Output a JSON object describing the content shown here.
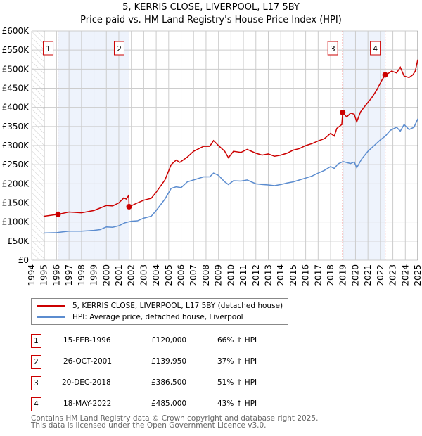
{
  "title": "5, KERRIS CLOSE, LIVERPOOL, L17 5BY",
  "subtitle": "Price paid vs. HM Land Registry's House Price Index (HPI)",
  "colors": {
    "property": "#cc0000",
    "hpi": "#5b8ccf",
    "shade": "#eef3fc",
    "grid": "#cccccc"
  },
  "chart_data": {
    "type": "line",
    "xlim": [
      1994,
      2025
    ],
    "ylim": [
      0,
      600000
    ],
    "x_ticks": [
      "1994",
      "1995",
      "1996",
      "1997",
      "1998",
      "1999",
      "2000",
      "2001",
      "2002",
      "2003",
      "2004",
      "2005",
      "2006",
      "2007",
      "2008",
      "2009",
      "2010",
      "2011",
      "2012",
      "2013",
      "2014",
      "2015",
      "2016",
      "2017",
      "2018",
      "2019",
      "2020",
      "2021",
      "2022",
      "2023",
      "2024",
      "2025"
    ],
    "y_ticks": [
      {
        "v": 0,
        "label": "£0"
      },
      {
        "v": 50000,
        "label": "£50K"
      },
      {
        "v": 100000,
        "label": "£100K"
      },
      {
        "v": 150000,
        "label": "£150K"
      },
      {
        "v": 200000,
        "label": "£200K"
      },
      {
        "v": 250000,
        "label": "£250K"
      },
      {
        "v": 300000,
        "label": "£300K"
      },
      {
        "v": 350000,
        "label": "£350K"
      },
      {
        "v": 400000,
        "label": "£400K"
      },
      {
        "v": 450000,
        "label": "£450K"
      },
      {
        "v": 500000,
        "label": "£500K"
      },
      {
        "v": 550000,
        "label": "£550K"
      },
      {
        "v": 600000,
        "label": "£600K"
      }
    ],
    "series": [
      {
        "name": "5, KERRIS CLOSE, LIVERPOOL, L17 5BY (detached house)",
        "color": "#cc0000",
        "points": [
          [
            1995,
            115000
          ],
          [
            1996.12,
            120000
          ],
          [
            1997,
            126000
          ],
          [
            1998,
            124000
          ],
          [
            1999,
            130000
          ],
          [
            2000,
            143000
          ],
          [
            2000.5,
            142000
          ],
          [
            2001,
            150000
          ],
          [
            2001.4,
            163000
          ],
          [
            2001.6,
            160000
          ],
          [
            2001.8,
            170000
          ],
          [
            2001.82,
            139950
          ],
          [
            2002.5,
            150000
          ],
          [
            2003,
            157000
          ],
          [
            2003.6,
            162000
          ],
          [
            2004,
            178000
          ],
          [
            2004.7,
            210000
          ],
          [
            2005.2,
            250000
          ],
          [
            2005.6,
            262000
          ],
          [
            2005.9,
            256000
          ],
          [
            2006.5,
            270000
          ],
          [
            2007,
            285000
          ],
          [
            2007.8,
            298000
          ],
          [
            2008.3,
            298000
          ],
          [
            2008.6,
            313000
          ],
          [
            2009,
            300000
          ],
          [
            2009.5,
            285000
          ],
          [
            2009.8,
            268000
          ],
          [
            2010.2,
            285000
          ],
          [
            2010.8,
            282000
          ],
          [
            2011.3,
            290000
          ],
          [
            2012,
            280000
          ],
          [
            2012.5,
            275000
          ],
          [
            2013,
            278000
          ],
          [
            2013.5,
            272000
          ],
          [
            2014,
            275000
          ],
          [
            2014.5,
            280000
          ],
          [
            2015,
            288000
          ],
          [
            2015.5,
            292000
          ],
          [
            2016,
            300000
          ],
          [
            2016.5,
            305000
          ],
          [
            2017,
            312000
          ],
          [
            2017.5,
            318000
          ],
          [
            2018,
            332000
          ],
          [
            2018.3,
            325000
          ],
          [
            2018.5,
            345000
          ],
          [
            2018.9,
            355000
          ],
          [
            2018.97,
            386500
          ],
          [
            2019.3,
            375000
          ],
          [
            2019.6,
            385000
          ],
          [
            2019.9,
            382000
          ],
          [
            2020.1,
            362000
          ],
          [
            2020.4,
            388000
          ],
          [
            2020.8,
            405000
          ],
          [
            2021.3,
            425000
          ],
          [
            2021.7,
            445000
          ],
          [
            2022.1,
            470000
          ],
          [
            2022.38,
            485000
          ],
          [
            2022.6,
            488000
          ],
          [
            2022.9,
            495000
          ],
          [
            2023.3,
            490000
          ],
          [
            2023.6,
            505000
          ],
          [
            2023.9,
            482000
          ],
          [
            2024.3,
            478000
          ],
          [
            2024.6,
            485000
          ],
          [
            2024.8,
            495000
          ],
          [
            2025,
            525000
          ]
        ]
      },
      {
        "name": "HPI: Average price, detached house, Liverpool",
        "color": "#5b8ccf",
        "points": [
          [
            1995,
            71000
          ],
          [
            1996,
            72000
          ],
          [
            1996.5,
            74000
          ],
          [
            1997,
            76000
          ],
          [
            1998,
            76000
          ],
          [
            1999,
            78000
          ],
          [
            1999.5,
            80000
          ],
          [
            2000,
            87000
          ],
          [
            2000.5,
            86000
          ],
          [
            2001,
            90000
          ],
          [
            2001.5,
            98000
          ],
          [
            2002,
            102000
          ],
          [
            2002.5,
            103000
          ],
          [
            2003,
            110000
          ],
          [
            2003.6,
            115000
          ],
          [
            2004,
            130000
          ],
          [
            2004.7,
            160000
          ],
          [
            2005.2,
            188000
          ],
          [
            2005.6,
            192000
          ],
          [
            2006,
            190000
          ],
          [
            2006.5,
            205000
          ],
          [
            2007,
            210000
          ],
          [
            2007.8,
            218000
          ],
          [
            2008.3,
            218000
          ],
          [
            2008.6,
            228000
          ],
          [
            2009,
            222000
          ],
          [
            2009.5,
            205000
          ],
          [
            2009.8,
            198000
          ],
          [
            2010.2,
            208000
          ],
          [
            2010.8,
            207000
          ],
          [
            2011.3,
            210000
          ],
          [
            2012,
            200000
          ],
          [
            2012.5,
            198000
          ],
          [
            2013,
            197000
          ],
          [
            2013.5,
            195000
          ],
          [
            2014,
            198000
          ],
          [
            2014.5,
            202000
          ],
          [
            2015,
            205000
          ],
          [
            2015.5,
            210000
          ],
          [
            2016,
            215000
          ],
          [
            2016.5,
            220000
          ],
          [
            2017,
            228000
          ],
          [
            2017.5,
            235000
          ],
          [
            2018,
            245000
          ],
          [
            2018.3,
            240000
          ],
          [
            2018.6,
            252000
          ],
          [
            2019,
            258000
          ],
          [
            2019.6,
            253000
          ],
          [
            2019.9,
            257000
          ],
          [
            2020.1,
            242000
          ],
          [
            2020.5,
            265000
          ],
          [
            2021,
            285000
          ],
          [
            2021.5,
            300000
          ],
          [
            2022,
            315000
          ],
          [
            2022.4,
            325000
          ],
          [
            2022.8,
            340000
          ],
          [
            2023.3,
            348000
          ],
          [
            2023.6,
            338000
          ],
          [
            2023.9,
            355000
          ],
          [
            2024.3,
            342000
          ],
          [
            2024.7,
            348000
          ],
          [
            2025,
            370000
          ]
        ]
      }
    ],
    "shaded_ranges": [
      [
        1996.12,
        2001.82
      ],
      [
        2018.97,
        2022.38
      ]
    ],
    "annotations": [
      {
        "label": "1",
        "x": 1996.12,
        "y": 120000
      },
      {
        "label": "2",
        "x": 2001.82,
        "y": 139950
      },
      {
        "label": "3",
        "x": 2018.97,
        "y": 386500
      },
      {
        "label": "4",
        "x": 2022.38,
        "y": 485000
      }
    ]
  },
  "legend": {
    "property": "5, KERRIS CLOSE, LIVERPOOL, L17 5BY (detached house)",
    "hpi": "HPI: Average price, detached house, Liverpool"
  },
  "sales": [
    {
      "num": "1",
      "date": "15-FEB-1996",
      "price": "£120,000",
      "hpi": "66% ↑ HPI"
    },
    {
      "num": "2",
      "date": "26-OCT-2001",
      "price": "£139,950",
      "hpi": "37% ↑ HPI"
    },
    {
      "num": "3",
      "date": "20-DEC-2018",
      "price": "£386,500",
      "hpi": "51% ↑ HPI"
    },
    {
      "num": "4",
      "date": "18-MAY-2022",
      "price": "£485,000",
      "hpi": "43% ↑ HPI"
    }
  ],
  "footer": {
    "line1": "Contains HM Land Registry data © Crown copyright and database right 2025.",
    "line2": "This data is licensed under the Open Government Licence v3.0."
  }
}
